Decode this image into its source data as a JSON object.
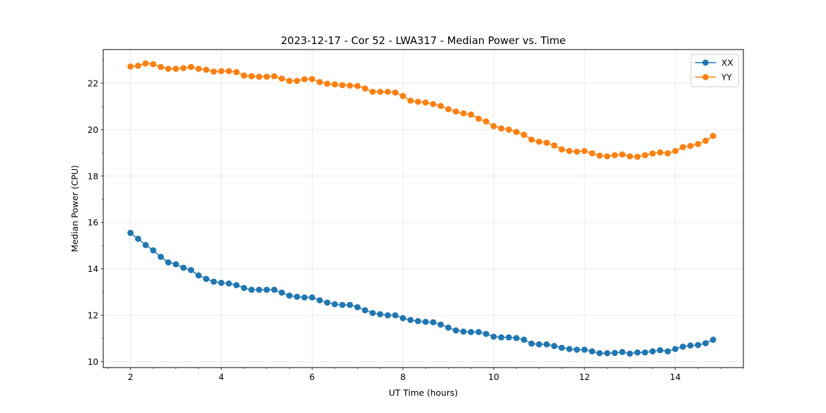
{
  "chart_data": {
    "type": "line",
    "title": "2023-12-17 - Cor 52 - LWA317 - Median Power vs. Time",
    "xlabel": "UT Time (hours)",
    "ylabel": "Median Power (CPU)",
    "xlim": [
      1.4,
      15.5
    ],
    "ylim": [
      9.75,
      23.45
    ],
    "xticks": [
      2,
      4,
      6,
      8,
      10,
      12,
      14
    ],
    "yticks": [
      10,
      12,
      14,
      16,
      18,
      20,
      22
    ],
    "grid": true,
    "legend_position": "top-right",
    "x": [
      2.0,
      2.167,
      2.333,
      2.5,
      2.667,
      2.833,
      3.0,
      3.167,
      3.333,
      3.5,
      3.667,
      3.833,
      4.0,
      4.167,
      4.333,
      4.5,
      4.667,
      4.833,
      5.0,
      5.167,
      5.333,
      5.5,
      5.667,
      5.833,
      6.0,
      6.167,
      6.333,
      6.5,
      6.667,
      6.833,
      7.0,
      7.167,
      7.333,
      7.5,
      7.667,
      7.833,
      8.0,
      8.167,
      8.333,
      8.5,
      8.667,
      8.833,
      9.0,
      9.167,
      9.333,
      9.5,
      9.667,
      9.833,
      10.0,
      10.167,
      10.333,
      10.5,
      10.667,
      10.833,
      11.0,
      11.167,
      11.333,
      11.5,
      11.667,
      11.833,
      12.0,
      12.167,
      12.333,
      12.5,
      12.667,
      12.833,
      13.0,
      13.167,
      13.333,
      13.5,
      13.667,
      13.833,
      14.0,
      14.167,
      14.333,
      14.5,
      14.667,
      14.833
    ],
    "series": [
      {
        "name": "XX",
        "color": "#1f77b4",
        "values": [
          15.55,
          15.3,
          15.03,
          14.8,
          14.52,
          14.28,
          14.2,
          14.05,
          13.95,
          13.72,
          13.57,
          13.45,
          13.4,
          13.37,
          13.3,
          13.18,
          13.1,
          13.1,
          13.1,
          13.1,
          12.98,
          12.85,
          12.8,
          12.77,
          12.77,
          12.65,
          12.55,
          12.48,
          12.45,
          12.45,
          12.35,
          12.22,
          12.1,
          12.05,
          12.0,
          12.0,
          11.88,
          11.8,
          11.75,
          11.72,
          11.7,
          11.6,
          11.47,
          11.35,
          11.3,
          11.28,
          11.28,
          11.2,
          11.08,
          11.05,
          11.05,
          11.02,
          10.95,
          10.78,
          10.75,
          10.75,
          10.68,
          10.6,
          10.55,
          10.52,
          10.52,
          10.45,
          10.37,
          10.37,
          10.38,
          10.42,
          10.35,
          10.4,
          10.4,
          10.45,
          10.5,
          10.45,
          10.55,
          10.65,
          10.7,
          10.72,
          10.8,
          10.95
        ]
      },
      {
        "name": "YY",
        "color": "#ff7f0e",
        "values": [
          22.72,
          22.75,
          22.85,
          22.82,
          22.7,
          22.62,
          22.62,
          22.65,
          22.7,
          22.62,
          22.58,
          22.5,
          22.52,
          22.52,
          22.48,
          22.33,
          22.3,
          22.28,
          22.28,
          22.3,
          22.2,
          22.1,
          22.1,
          22.17,
          22.18,
          22.05,
          21.98,
          21.95,
          21.92,
          21.9,
          21.88,
          21.77,
          21.63,
          21.63,
          21.63,
          21.6,
          21.45,
          21.25,
          21.2,
          21.17,
          21.1,
          21.02,
          20.88,
          20.78,
          20.7,
          20.65,
          20.47,
          20.35,
          20.15,
          20.05,
          20.0,
          19.9,
          19.78,
          19.57,
          19.48,
          19.43,
          19.32,
          19.15,
          19.08,
          19.05,
          19.08,
          18.98,
          18.88,
          18.85,
          18.9,
          18.93,
          18.85,
          18.83,
          18.9,
          18.97,
          19.02,
          18.98,
          19.08,
          19.25,
          19.3,
          19.38,
          19.52,
          19.73
        ]
      }
    ]
  }
}
